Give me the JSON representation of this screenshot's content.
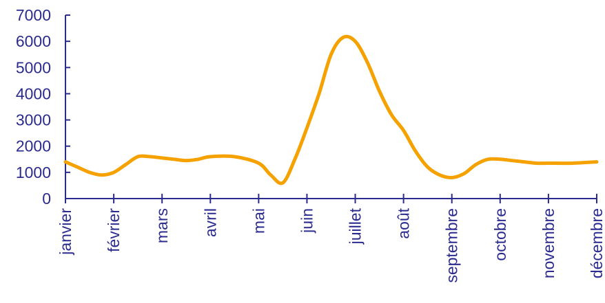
{
  "chart_data": {
    "type": "line",
    "title": "",
    "xlabel": "",
    "ylabel": "",
    "ylim": [
      0,
      7000
    ],
    "y_ticks": [
      "0",
      "1000",
      "2000",
      "3000",
      "4000",
      "5000",
      "6000",
      "7000"
    ],
    "categories": [
      "janvier",
      "février",
      "mars",
      "avril",
      "mai",
      "juin",
      "juillet",
      "août",
      "septembre",
      "octobre",
      "novembre",
      "décembre"
    ],
    "grid": false,
    "legend": "none",
    "x": [
      0,
      0.25,
      0.5,
      0.75,
      1,
      1.25,
      1.5,
      1.75,
      2,
      2.25,
      2.5,
      2.75,
      3,
      3.5,
      4,
      4.25,
      4.5,
      4.75,
      5,
      5.25,
      5.5,
      5.75,
      6,
      6.25,
      6.5,
      6.75,
      7,
      7.25,
      7.5,
      7.75,
      8,
      8.25,
      8.5,
      8.75,
      9,
      9.25,
      9.5,
      9.75,
      10,
      10.5,
      11
    ],
    "series": [
      {
        "name": "",
        "color": "#f5a100",
        "values": [
          1400,
          1200,
          1000,
          900,
          1000,
          1300,
          1600,
          1600,
          1550,
          1500,
          1450,
          1500,
          1600,
          1600,
          1350,
          900,
          600,
          1500,
          2700,
          4000,
          5500,
          6150,
          6000,
          5200,
          4100,
          3200,
          2600,
          1800,
          1200,
          900,
          800,
          950,
          1300,
          1500,
          1500,
          1450,
          1400,
          1350,
          1350,
          1350,
          1400
        ]
      }
    ]
  }
}
